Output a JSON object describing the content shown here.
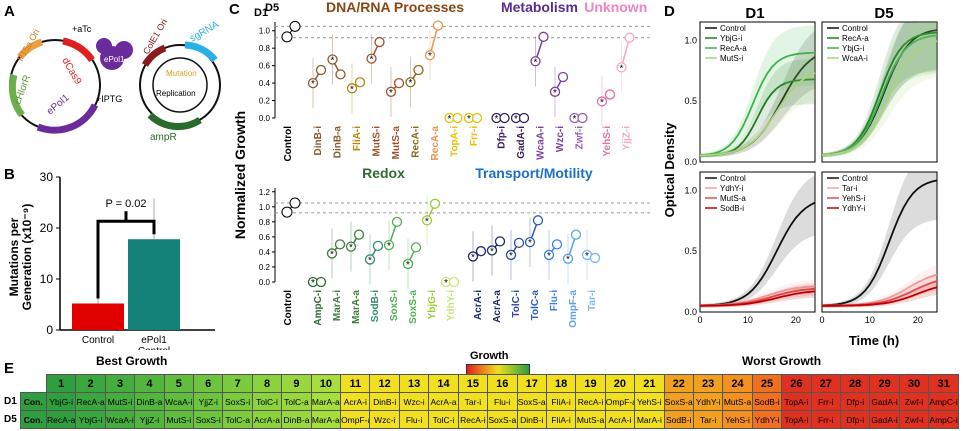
{
  "panel_letters": {
    "a": "A",
    "b": "B",
    "c": "C",
    "d": "D",
    "e": "E"
  },
  "panelA": {
    "plasmid1": {
      "ori": "P15a\nOri",
      "gene1": "dCas9",
      "gene2": "cHlorR",
      "gene3": "ePol1",
      "inducer1": "+aTc",
      "inducer2": "+IPTG"
    },
    "protein": "ePol1",
    "plasmid2": {
      "ori": "ColE1\nOri",
      "grna": "sgRNA",
      "mutation": "Mutation",
      "replication": "Replication",
      "resistance": "ampR"
    }
  },
  "panelB": {
    "ylabel": "Mutations per\nGeneration (x10⁻⁹)",
    "yticks": [
      0,
      10,
      20,
      30
    ],
    "pvalue": "P = 0.02",
    "bars": [
      {
        "label": "Control",
        "value": 5.2,
        "err": 3.5,
        "color": "#e00000"
      },
      {
        "label": "ePol1\nControl",
        "value": 17.8,
        "err": 8,
        "color": "#15827a"
      }
    ]
  },
  "chart_data": {
    "panelC": {
      "type": "scatter",
      "ylabel": "Normalized Growth",
      "timepoints": [
        "D1",
        "D5"
      ],
      "yticks_top": [
        0.0,
        0.2,
        0.4,
        0.6,
        0.8,
        1.0
      ],
      "yticks_bottom": [
        0.0,
        0.2,
        0.4,
        0.6,
        0.8,
        1.0,
        1.2
      ],
      "top_groups": [
        {
          "title": "DNA/RNA Processes",
          "color": "#8b4513",
          "genes": [
            {
              "name": "DinB-i",
              "color": "#8b5a2b",
              "d1": 0.4,
              "d5": 0.55
            },
            {
              "name": "DinB-a",
              "color": "#8b5a2b",
              "d1": 0.67,
              "d5": 0.5
            },
            {
              "name": "FliA-i",
              "color": "#b8860b",
              "d1": 0.34,
              "d5": 0.41
            },
            {
              "name": "MutS-i",
              "color": "#a0522d",
              "d1": 0.68,
              "d5": 0.87
            },
            {
              "name": "MutS-a",
              "color": "#a0522d",
              "d1": 0.3,
              "d5": 0.4
            },
            {
              "name": "RecA-i",
              "color": "#8b6914",
              "d1": 0.41,
              "d5": 0.55
            },
            {
              "name": "RecA-a",
              "color": "#e8944a",
              "d1": 0.72,
              "d5": 1.06
            },
            {
              "name": "TopA-i",
              "color": "#e8c000",
              "d1": 0.0,
              "d5": 0.0
            },
            {
              "name": "Frr-i",
              "color": "#e8c000",
              "d1": 0.0,
              "d5": 0.0
            }
          ]
        },
        {
          "title": "Metabolism",
          "color": "#5b2c8f",
          "genes": [
            {
              "name": "Dfp-i",
              "color": "#3a1e5c",
              "d1": 0.0,
              "d5": 0.0
            },
            {
              "name": "GadA-i",
              "color": "#3a1e5c",
              "d1": 0.0,
              "d5": 0.0
            },
            {
              "name": "WcaA-i",
              "color": "#7b3fa0",
              "d1": 0.65,
              "d5": 0.93
            },
            {
              "name": "Wzc-i",
              "color": "#7b3fa0",
              "d1": 0.3,
              "d5": 0.47
            },
            {
              "name": "Zwf-i",
              "color": "#9b59b6",
              "d1": 0.0,
              "d5": 0.0
            }
          ]
        },
        {
          "title": "Unknown",
          "color": "#ee82c8",
          "genes": [
            {
              "name": "YehS-i",
              "color": "#e36fa9",
              "d1": 0.19,
              "d5": 0.27
            },
            {
              "name": "YjjZ-i",
              "color": "#f4a7c4",
              "d1": 0.58,
              "d5": 0.92
            }
          ]
        }
      ],
      "bottom_groups": [
        {
          "title": "Redox",
          "color": "#2e6b30",
          "genes": [
            {
              "name": "AmpC-i",
              "color": "#2e6b30",
              "d1": 0.0,
              "d5": 0.0
            },
            {
              "name": "MarA-i",
              "color": "#3c7d3c",
              "d1": 0.38,
              "d5": 0.5
            },
            {
              "name": "MarA-a",
              "color": "#3c7d3c",
              "d1": 0.47,
              "d5": 0.63
            },
            {
              "name": "SodB-i",
              "color": "#2f8f6f",
              "d1": 0.3,
              "d5": 0.48
            },
            {
              "name": "SoxS-i",
              "color": "#4caf50",
              "d1": 0.49,
              "d5": 0.8
            },
            {
              "name": "SoxS-a",
              "color": "#4caf50",
              "d1": 0.24,
              "d5": 0.46
            },
            {
              "name": "YbjG-i",
              "color": "#9acd32",
              "d1": 0.82,
              "d5": 1.04
            },
            {
              "name": "YdhY-i",
              "color": "#c8e67a",
              "d1": 0.0,
              "d5": 0.0
            }
          ]
        },
        {
          "title": "Transport/Motility",
          "color": "#1e6fc8",
          "genes": [
            {
              "name": "AcrA-i",
              "color": "#1a2a6c",
              "d1": 0.34,
              "d5": 0.41
            },
            {
              "name": "AcrA-a",
              "color": "#1a2a6c",
              "d1": 0.42,
              "d5": 0.54
            },
            {
              "name": "TolC-i",
              "color": "#2a4aa8",
              "d1": 0.36,
              "d5": 0.52
            },
            {
              "name": "TolC-a",
              "color": "#2a5bc0",
              "d1": 0.53,
              "d5": 0.82
            },
            {
              "name": "Flu-i",
              "color": "#3a80e0",
              "d1": 0.36,
              "d5": 0.5
            },
            {
              "name": "OmpF-a",
              "color": "#5aa0e8",
              "d1": 0.31,
              "d5": 0.63
            },
            {
              "name": "Tar-i",
              "color": "#7ab8ef",
              "d1": 0.36,
              "d5": 0.32
            }
          ]
        }
      ],
      "control": {
        "name": "Control",
        "d1": 0.93,
        "d5": 1.05
      }
    },
    "panelD": {
      "type": "line",
      "xlabel": "Time (h)",
      "ylabel": "Optical Density",
      "xticks": [
        0,
        10,
        20
      ],
      "yticks": [
        0.0,
        0.5,
        1.0
      ],
      "xlim": [
        0,
        24
      ],
      "ylim": [
        0,
        1.15
      ],
      "columns": [
        "D1",
        "D5"
      ],
      "subplots": [
        {
          "id": "d1-top",
          "series": [
            {
              "name": "Control",
              "color": "#111111",
              "plateau": 0.95,
              "mid": 17,
              "k": 0.32
            },
            {
              "name": "YbjG-i",
              "color": "#1f7a1f",
              "plateau": 0.68,
              "mid": 12,
              "k": 0.5
            },
            {
              "name": "RecA-a",
              "color": "#3cb34a",
              "plateau": 0.9,
              "mid": 11,
              "k": 0.45
            },
            {
              "name": "MutS-i",
              "color": "#a9d67a",
              "plateau": 0.78,
              "mid": 16,
              "k": 0.33
            }
          ]
        },
        {
          "id": "d5-top",
          "series": [
            {
              "name": "Control",
              "color": "#111111",
              "plateau": 1.1,
              "mid": 13,
              "k": 0.38
            },
            {
              "name": "RecA-a",
              "color": "#1f7a1f",
              "plateau": 1.07,
              "mid": 12,
              "k": 0.42
            },
            {
              "name": "YbjG-i",
              "color": "#3cb34a",
              "plateau": 1.05,
              "mid": 12.5,
              "k": 0.4
            },
            {
              "name": "WcaA-i",
              "color": "#a9d67a",
              "plateau": 1.02,
              "mid": 14,
              "k": 0.36
            }
          ]
        },
        {
          "id": "d1-bottom",
          "series": [
            {
              "name": "Control",
              "color": "#111111",
              "plateau": 0.95,
              "mid": 16,
              "k": 0.35
            },
            {
              "name": "YdhY-i",
              "color": "#f5a0a0",
              "plateau": 0.22,
              "mid": 14,
              "k": 0.3
            },
            {
              "name": "MutS-a",
              "color": "#e05050",
              "plateau": 0.2,
              "mid": 15,
              "k": 0.3
            },
            {
              "name": "SodB-i",
              "color": "#c00000",
              "plateau": 0.18,
              "mid": 16,
              "k": 0.3
            }
          ]
        },
        {
          "id": "d5-bottom",
          "series": [
            {
              "name": "Control",
              "color": "#111111",
              "plateau": 1.1,
              "mid": 14,
              "k": 0.4
            },
            {
              "name": "Tar-i",
              "color": "#f5a0a0",
              "plateau": 0.35,
              "mid": 18,
              "k": 0.3
            },
            {
              "name": "YehS-i",
              "color": "#e05050",
              "plateau": 0.3,
              "mid": 19,
              "k": 0.3
            },
            {
              "name": "YdhY-i",
              "color": "#c00000",
              "plateau": 0.25,
              "mid": 20,
              "k": 0.3
            }
          ]
        }
      ]
    },
    "panelE": {
      "type": "table",
      "best_label": "Best Growth",
      "worst_label": "Worst Growth",
      "growth_label": "Growth",
      "rows": [
        "D1",
        "D5"
      ],
      "control_label": "Con.",
      "ranks": [
        "1",
        "2",
        "3",
        "4",
        "5",
        "6",
        "7",
        "8",
        "9",
        "10",
        "11",
        "12",
        "13",
        "14",
        "15",
        "16",
        "17",
        "18",
        "19",
        "20",
        "21",
        "22",
        "23",
        "24",
        "25",
        "26",
        "27",
        "28",
        "29",
        "30",
        "31"
      ],
      "d1": [
        "YbjG-i",
        "RecA-a",
        "MutS-i",
        "DinB-a",
        "WcaA-i",
        "YjjZ-i",
        "SoxS-i",
        "TolC-i",
        "TolC-a",
        "MarA-a",
        "AcrA-i",
        "DinB-i",
        "Wzc-i",
        "AcrA-a",
        "Tar-i",
        "Flu-i",
        "SoxS-a",
        "FliA-i",
        "RecA-i",
        "OmpF-a",
        "YehS-i",
        "SoxS-a",
        "YdhY-i",
        "MutS-a",
        "SodB-i",
        "TopA-i",
        "Frr-i",
        "Dfp-i",
        "GadA-i",
        "Zwf-i",
        "AmpC-i"
      ],
      "d5": [
        "RecA-a",
        "YbjG-i",
        "WcaA-i",
        "YjjZ-i",
        "MutS-i",
        "SoxS-i",
        "TolC-a",
        "AcrA-a",
        "DinB-a",
        "MarA-a",
        "OmpF-a",
        "Wzc-i",
        "Flu-i",
        "TolC-i",
        "RecA-i",
        "SoxS-a",
        "DinB-i",
        "FliA-i",
        "MutS-a",
        "AcrA-i",
        "MarA-i",
        "SodB-i",
        "Tar-i",
        "YehS-i",
        "YdhY-i",
        "TopA-i",
        "Frr-i",
        "Dfp-i",
        "GadA-i",
        "Zwf-i",
        "AmpC-i"
      ],
      "rank_colors": [
        "#2e9e3e",
        "#3aa63e",
        "#45ad3e",
        "#52b53e",
        "#60bd3e",
        "#6ec43e",
        "#7ccb3e",
        "#8ad23e",
        "#98d83e",
        "#a6de3e",
        "#f0e020",
        "#f0e020",
        "#f0e020",
        "#f0e020",
        "#f0e020",
        "#f0e020",
        "#f0e020",
        "#f0e020",
        "#f0e020",
        "#f0e020",
        "#f0e020",
        "#f2a020",
        "#f2a020",
        "#f29020",
        "#f07020",
        "#e03020",
        "#e03020",
        "#e03020",
        "#e03020",
        "#e03020",
        "#e03020"
      ]
    }
  }
}
